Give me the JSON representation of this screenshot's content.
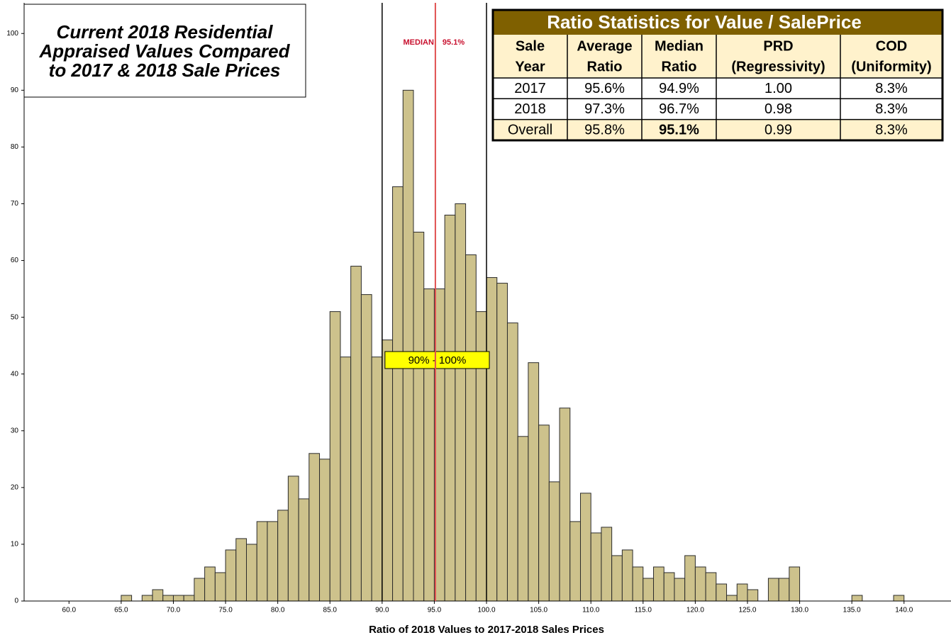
{
  "chart_data": {
    "type": "histogram",
    "title": [
      "Current 2018 Residential",
      "Appraised Values Compared",
      "to 2017 & 2018 Sale Prices"
    ],
    "x_label": "Ratio of 2018 Values to 2017-2018 Sales Prices",
    "bins": [
      65,
      66,
      67,
      68,
      69,
      70,
      71,
      72,
      73,
      74,
      75,
      76,
      77,
      78,
      79,
      80,
      81,
      82,
      83,
      84,
      85,
      86,
      87,
      88,
      89,
      90,
      91,
      92,
      93,
      94,
      95,
      96,
      97,
      98,
      99,
      100,
      101,
      102,
      103,
      104,
      105,
      106,
      107,
      108,
      109,
      110,
      111,
      112,
      113,
      114,
      115,
      116,
      117,
      118,
      119,
      120,
      121,
      122,
      123,
      124,
      125,
      126,
      127,
      128,
      129,
      130,
      131,
      132,
      133,
      134,
      135,
      136,
      137,
      138,
      139,
      140
    ],
    "values": [
      1,
      0,
      1,
      2,
      1,
      1,
      1,
      4,
      6,
      5,
      9,
      11,
      10,
      14,
      14,
      16,
      22,
      18,
      26,
      25,
      51,
      43,
      59,
      54,
      43,
      46,
      73,
      90,
      65,
      55,
      55,
      68,
      70,
      61,
      51,
      57,
      56,
      49,
      29,
      42,
      31,
      21,
      34,
      14,
      19,
      12,
      13,
      8,
      9,
      6,
      4,
      6,
      5,
      4,
      8,
      6,
      5,
      3,
      1,
      3,
      2,
      0,
      4,
      4,
      6,
      0,
      0,
      0,
      0,
      0,
      1,
      0,
      0,
      0,
      1
    ],
    "color": "#cdc28c",
    "xlim": [
      55.7,
      144.5
    ],
    "ylim": [
      0,
      105.4
    ],
    "xticks": [
      {
        "value": 60,
        "label": "60.0"
      },
      {
        "value": 65,
        "label": "65.0"
      },
      {
        "value": 70,
        "label": "70.0"
      },
      {
        "value": 75,
        "label": "75.0"
      },
      {
        "value": 80,
        "label": "80.0"
      },
      {
        "value": 85,
        "label": "85.0"
      },
      {
        "value": 90,
        "label": "90.0"
      },
      {
        "value": 95,
        "label": "95.0"
      },
      {
        "value": 100,
        "label": "100.0"
      },
      {
        "value": 105,
        "label": "105.0"
      },
      {
        "value": 110,
        "label": "110.0"
      },
      {
        "value": 115,
        "label": "115.0"
      },
      {
        "value": 120,
        "label": "120.0"
      },
      {
        "value": 125,
        "label": "125.0"
      },
      {
        "value": 130,
        "label": "130.0"
      },
      {
        "value": 135,
        "label": "135.0"
      },
      {
        "value": 140,
        "label": "140.0"
      }
    ],
    "yticks": [
      0,
      10,
      20,
      30,
      40,
      50,
      60,
      70,
      80,
      90,
      100
    ],
    "median": {
      "label": "MEDIAN",
      "value": 95.1,
      "value_label": "95.1%",
      "color": "#e05050"
    },
    "range": {
      "label": "90% - 100%",
      "from": 90,
      "to": 100
    },
    "table": {
      "title": "Ratio Statistics for Value / SalePrice",
      "header": [
        [
          "Sale",
          "Year"
        ],
        [
          "Average",
          "Ratio"
        ],
        [
          "Median",
          "Ratio"
        ],
        [
          "PRD",
          "(Regressivity)"
        ],
        [
          "COD",
          "(Uniformity)"
        ]
      ],
      "rows": [
        [
          "2017",
          "95.6%",
          "94.9%",
          "1.00",
          "8.3%"
        ],
        [
          "2018",
          "97.3%",
          "96.7%",
          "0.98",
          "8.3%"
        ],
        [
          "Overall",
          "95.8%",
          "95.1%",
          "0.99",
          "8.3%"
        ]
      ]
    }
  }
}
